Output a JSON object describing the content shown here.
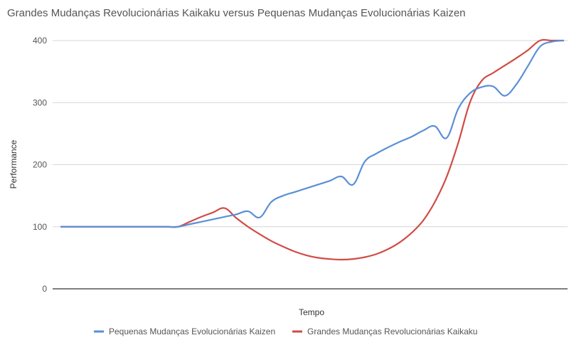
{
  "chart_data": {
    "type": "line",
    "title": "Grandes Mudanças Revolucionárias Kaikaku versus Pequenas Mudanças Evolucionárias Kaizen",
    "xlabel": "Tempo",
    "ylabel": "Performance",
    "ylim": [
      0,
      400
    ],
    "yticks": [
      "0",
      "100",
      "200",
      "300",
      "400"
    ],
    "grid": true,
    "legend_position": "bottom",
    "x": [
      0,
      1,
      2,
      3,
      4,
      5,
      6,
      7,
      8,
      9,
      10,
      11,
      12,
      13,
      14,
      15,
      16,
      17,
      18,
      19,
      20,
      21,
      22,
      23,
      24,
      25,
      26,
      27,
      28,
      29,
      30,
      31,
      32,
      33,
      34,
      35,
      36,
      37,
      38,
      39,
      40,
      41,
      42,
      43,
      44,
      45,
      46,
      47,
      48,
      49,
      50,
      51,
      52,
      53,
      54,
      55,
      56,
      57,
      58,
      59,
      60
    ],
    "series": [
      {
        "name": "Pequenas Mudanças Evolucionárias Kaizen",
        "color": "#5b8fd6",
        "values": [
          100,
          100,
          100,
          100,
          100,
          100,
          100,
          100,
          100,
          100,
          100,
          104,
          108,
          112,
          116,
          120,
          125,
          115,
          140,
          150,
          156,
          162,
          168,
          174,
          181,
          168,
          205,
          218,
          228,
          237,
          245,
          255,
          262,
          243,
          290,
          315,
          325,
          326,
          311,
          330,
          360,
          390,
          398,
          400,
          400,
          400,
          400,
          400,
          400,
          400,
          400,
          400,
          400,
          400,
          400,
          400,
          400,
          400,
          400,
          400,
          400
        ]
      },
      {
        "name": "Grandes Mudanças Revolucionárias Kaikaku",
        "color": "#d14b45",
        "values": [
          100,
          100,
          100,
          100,
          100,
          100,
          100,
          100,
          100,
          100,
          100,
          108,
          116,
          123,
          130,
          114,
          100,
          88,
          77,
          68,
          60,
          54,
          50,
          48,
          47,
          48,
          51,
          56,
          64,
          75,
          90,
          110,
          140,
          180,
          235,
          300,
          335,
          348,
          360,
          372,
          385,
          400,
          400,
          400,
          400,
          400,
          400,
          400,
          400,
          400,
          400,
          400,
          400,
          400,
          400,
          400,
          400,
          400,
          400,
          400,
          400
        ]
      }
    ]
  }
}
